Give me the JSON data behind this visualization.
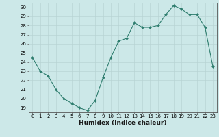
{
  "x": [
    0,
    1,
    2,
    3,
    4,
    5,
    6,
    7,
    8,
    9,
    10,
    11,
    12,
    13,
    14,
    15,
    16,
    17,
    18,
    19,
    20,
    21,
    22,
    23
  ],
  "y": [
    24.5,
    23.0,
    22.5,
    21.0,
    20.0,
    19.5,
    19.0,
    18.7,
    19.8,
    22.3,
    24.5,
    26.3,
    26.6,
    28.3,
    27.8,
    27.8,
    28.0,
    29.2,
    30.2,
    29.8,
    29.2,
    29.2,
    27.8,
    23.5
  ],
  "ylim": [
    18.5,
    30.5
  ],
  "yticks": [
    19,
    20,
    21,
    22,
    23,
    24,
    25,
    26,
    27,
    28,
    29,
    30
  ],
  "xticks": [
    0,
    1,
    2,
    3,
    4,
    5,
    6,
    7,
    8,
    9,
    10,
    11,
    12,
    13,
    14,
    15,
    16,
    17,
    18,
    19,
    20,
    21,
    22,
    23
  ],
  "xlabel": "Humidex (Indice chaleur)",
  "line_color": "#2e7d6e",
  "marker_color": "#2e7d6e",
  "bg_color": "#cce8e8",
  "grid_color": "#b8d4d4",
  "tick_fontsize": 5,
  "xlabel_fontsize": 6.5
}
